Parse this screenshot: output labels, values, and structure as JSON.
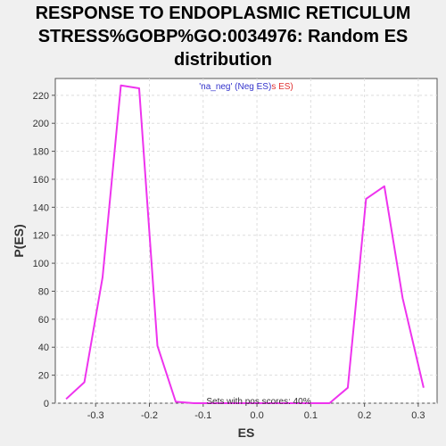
{
  "chart_data": {
    "type": "line",
    "title_lines": [
      "RESPONSE TO ENDOPLASMIC RETICULUM",
      "STRESS%GOBP%GO:0034976: Random ES",
      "distribution"
    ],
    "xlabel": "ES",
    "ylabel": "P(ES)",
    "xlim": [
      -0.375,
      0.335
    ],
    "ylim": [
      0,
      232
    ],
    "xticks": [
      -0.3,
      -0.2,
      -0.1,
      0.0,
      0.1,
      0.2,
      0.3
    ],
    "xtick_labels": [
      "-0.3",
      "-0.2",
      "-0.1",
      "0.0",
      "0.1",
      "0.2",
      "0.3"
    ],
    "yticks": [
      0,
      20,
      40,
      60,
      80,
      100,
      120,
      140,
      160,
      180,
      200,
      220
    ],
    "ytick_labels": [
      "0",
      "20",
      "40",
      "60",
      "80",
      "100",
      "120",
      "140",
      "160",
      "180",
      "200",
      "220"
    ],
    "grid": true,
    "legend": {
      "position": "top-center",
      "parts": [
        {
          "text": "'na_neg' (Neg ES)",
          "color": "#3333cc"
        },
        {
          "text": "s ES)",
          "color": "#e03030"
        }
      ]
    },
    "annotation": "Sets with pos scores: 40%",
    "series": [
      {
        "color": "#ee33ee",
        "x": [
          -0.355,
          -0.321,
          -0.287,
          -0.253,
          -0.219,
          -0.185,
          -0.151,
          -0.117,
          -0.083,
          -0.049,
          -0.015,
          0.019,
          0.053,
          0.087,
          0.121,
          0.135,
          0.169,
          0.203,
          0.237,
          0.271,
          0.31
        ],
        "y": [
          3,
          15,
          90,
          227,
          225,
          41,
          1,
          0,
          0,
          0,
          0,
          0,
          0,
          0,
          0,
          0,
          11,
          146,
          155,
          75,
          11
        ]
      }
    ]
  }
}
